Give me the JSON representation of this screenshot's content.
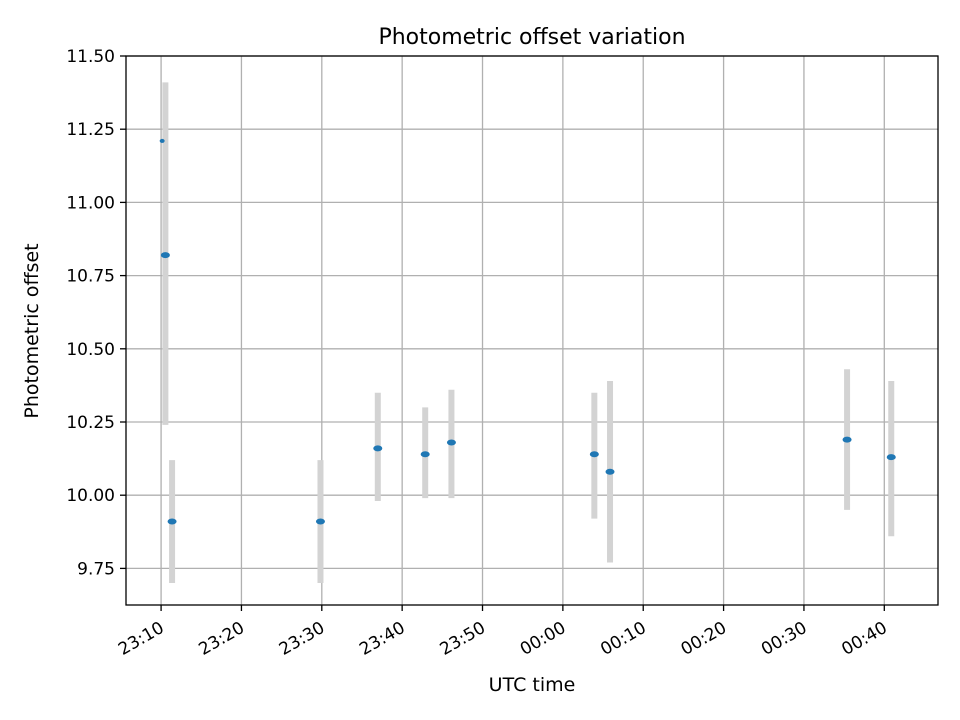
{
  "chart_data": {
    "type": "scatter",
    "title": "Photometric offset variation",
    "xlabel": "UTC time",
    "ylabel": "Photometric offset",
    "ylim": [
      9.625,
      11.5
    ],
    "xlim": [
      "23:05:38",
      "00:46:41"
    ],
    "grid": true,
    "x_ticks": [
      "23:10",
      "23:20",
      "23:30",
      "23:40",
      "23:50",
      "00:00",
      "00:10",
      "00:20",
      "00:30",
      "00:40"
    ],
    "y_ticks": [
      "9.75",
      "10.00",
      "10.25",
      "10.50",
      "10.75",
      "11.00",
      "11.25",
      "11.50"
    ],
    "colors": {
      "marker": "#1f77b4",
      "errorbar": "#d3d3d3",
      "grid": "#b0b0b0"
    },
    "points": [
      {
        "x": "23:10:08",
        "y": 11.21,
        "ylow": null,
        "yhigh": null
      },
      {
        "x": "23:10:32",
        "y": 10.82,
        "ylow": 10.24,
        "yhigh": 11.41
      },
      {
        "x": "23:11:22",
        "y": 9.91,
        "ylow": 9.7,
        "yhigh": 10.12
      },
      {
        "x": "23:29:50",
        "y": 9.91,
        "ylow": 9.7,
        "yhigh": 10.12
      },
      {
        "x": "23:36:58",
        "y": 10.16,
        "ylow": 9.98,
        "yhigh": 10.35
      },
      {
        "x": "23:42:52",
        "y": 10.14,
        "ylow": 9.99,
        "yhigh": 10.3
      },
      {
        "x": "23:46:08",
        "y": 10.18,
        "ylow": 9.99,
        "yhigh": 10.36
      },
      {
        "x": "00:03:55",
        "y": 10.14,
        "ylow": 9.92,
        "yhigh": 10.35
      },
      {
        "x": "00:05:52",
        "y": 10.08,
        "ylow": 9.77,
        "yhigh": 10.39
      },
      {
        "x": "00:35:22",
        "y": 10.19,
        "ylow": 9.95,
        "yhigh": 10.43
      },
      {
        "x": "00:40:52",
        "y": 10.13,
        "ylow": 9.86,
        "yhigh": 10.39
      }
    ]
  }
}
